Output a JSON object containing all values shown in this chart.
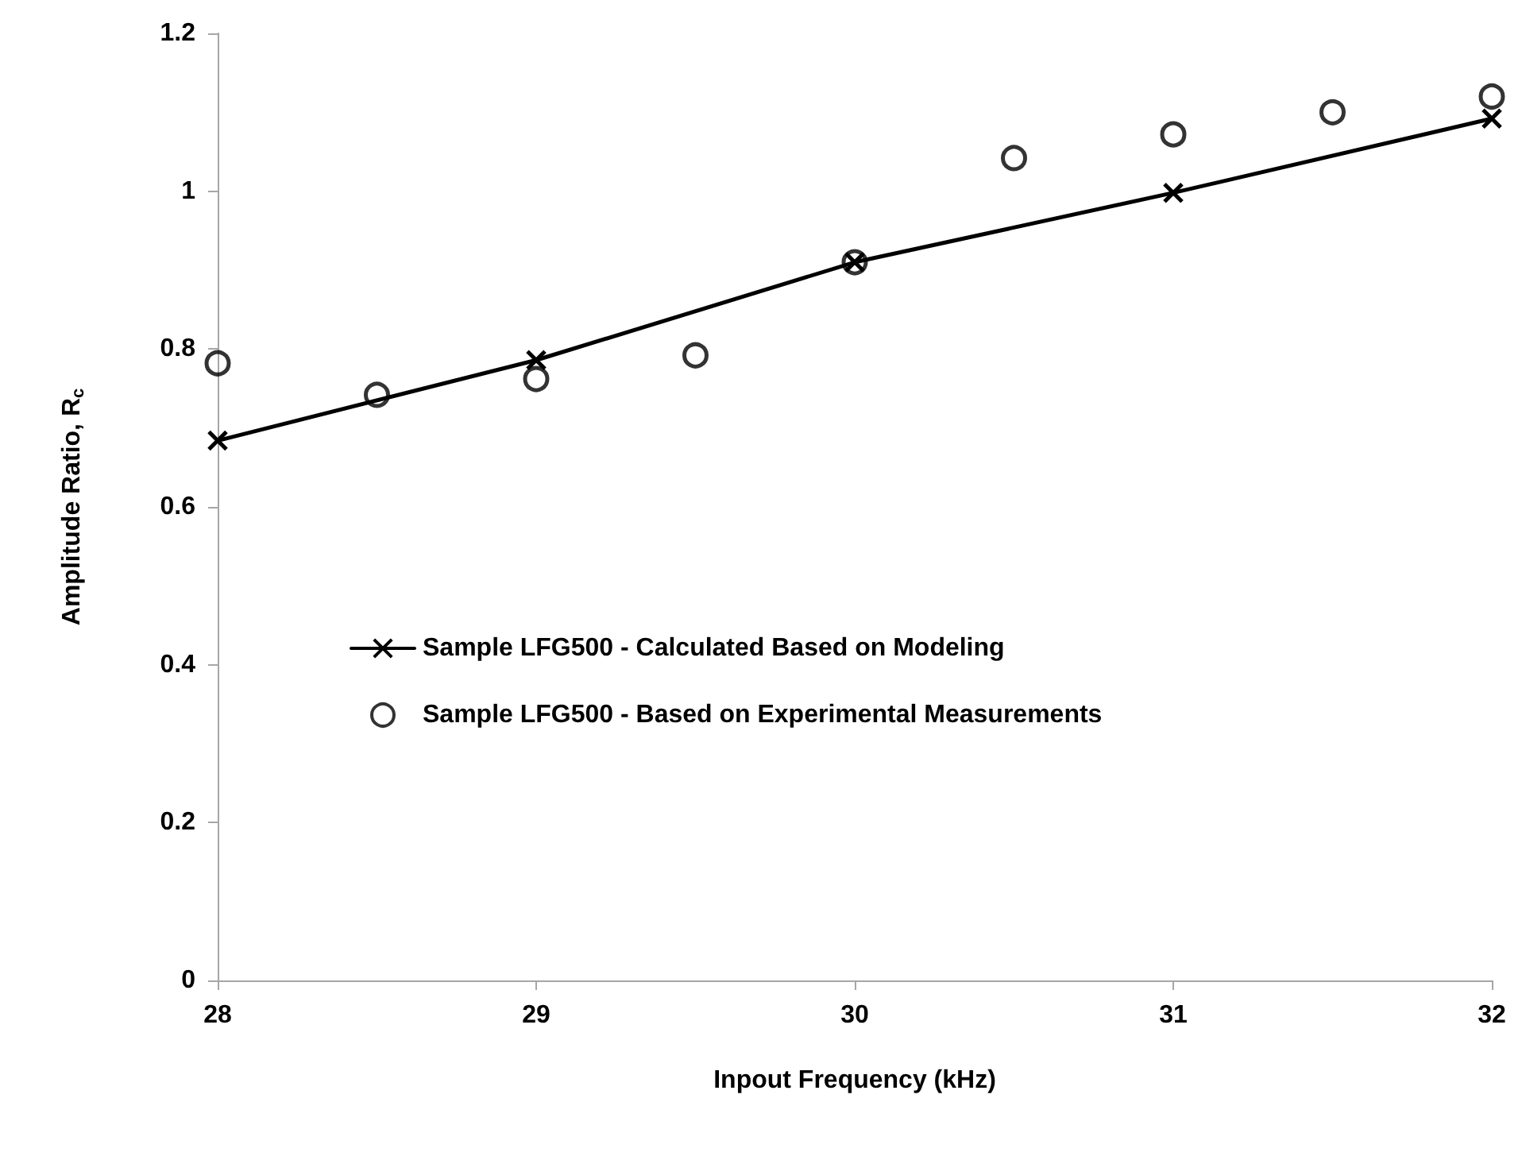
{
  "chart_data": {
    "type": "line",
    "xlabel": "Inpout Frequency (kHz)",
    "ylabel": "Amplitude Ratio, R$_{c}$",
    "xlim": [
      28,
      32
    ],
    "xticks": [
      28,
      29,
      30,
      31,
      32
    ],
    "ylim": [
      0,
      1.2
    ],
    "yticks": [
      0,
      0.2,
      0.4,
      0.6,
      0.8,
      1,
      1.2
    ],
    "grid": false,
    "legend": "center",
    "series": [
      {
        "name": "Sample LFG500 - Calculated Based on Modeling",
        "marker": "cross",
        "line_style": "solid",
        "color": "#000000",
        "x": [
          28,
          29,
          30,
          31,
          32
        ],
        "values": [
          0.684,
          0.786,
          0.91,
          0.998,
          1.092
        ]
      },
      {
        "name": "Sample LFG500 - Based on Experimental Measurements",
        "type": "scatter",
        "marker": "circle",
        "color": "#000000",
        "x": [
          28,
          28.5,
          29,
          29.5,
          30,
          30.5,
          31,
          31.5,
          32
        ],
        "values": [
          0.782,
          0.742,
          0.762,
          0.792,
          0.91,
          1.042,
          1.072,
          1.1,
          1.12
        ]
      }
    ]
  }
}
